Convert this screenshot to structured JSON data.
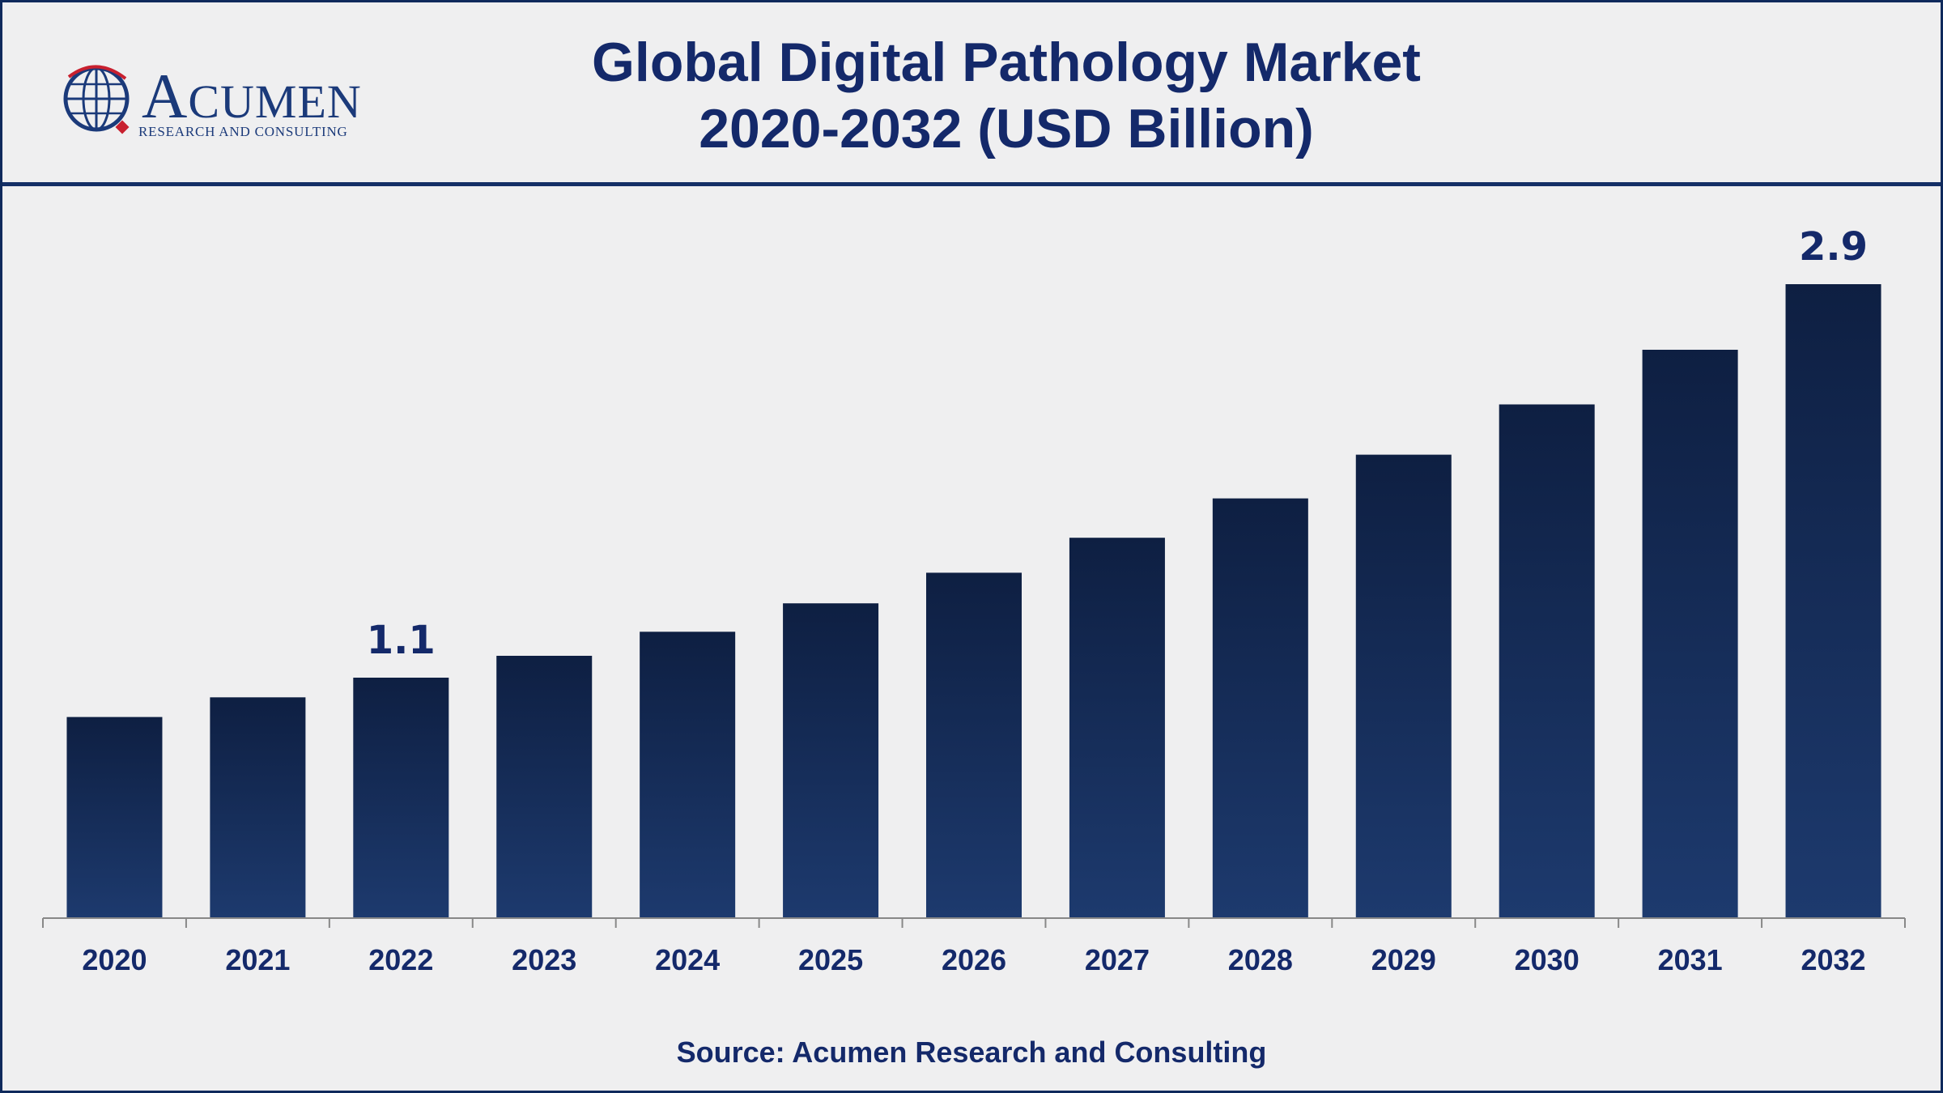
{
  "header": {
    "title_line1": "Global Digital Pathology Market",
    "title_line2": "2020-2032 (USD Billion)"
  },
  "logo": {
    "word_initial": "A",
    "word_rest": "CUMEN",
    "tagline": "RESEARCH AND CONSULTING"
  },
  "source": "Source: Acumen Research and Consulting",
  "colors": {
    "bar_top": "#0e1f42",
    "bar_bottom": "#1d3a6e",
    "text": "#14296a",
    "axis": "#888888"
  },
  "chart_data": {
    "type": "bar",
    "title": "Global Digital Pathology Market 2020-2032 (USD Billion)",
    "xlabel": "",
    "ylabel": "",
    "categories": [
      "2020",
      "2021",
      "2022",
      "2023",
      "2024",
      "2025",
      "2026",
      "2027",
      "2028",
      "2029",
      "2030",
      "2031",
      "2032"
    ],
    "values": [
      0.92,
      1.01,
      1.1,
      1.2,
      1.31,
      1.44,
      1.58,
      1.74,
      1.92,
      2.12,
      2.35,
      2.6,
      2.9
    ],
    "data_labels": {
      "2022": "1.1",
      "2032": "2.9"
    },
    "ylim": [
      0,
      2.9
    ],
    "grid": false,
    "legend": "none"
  }
}
